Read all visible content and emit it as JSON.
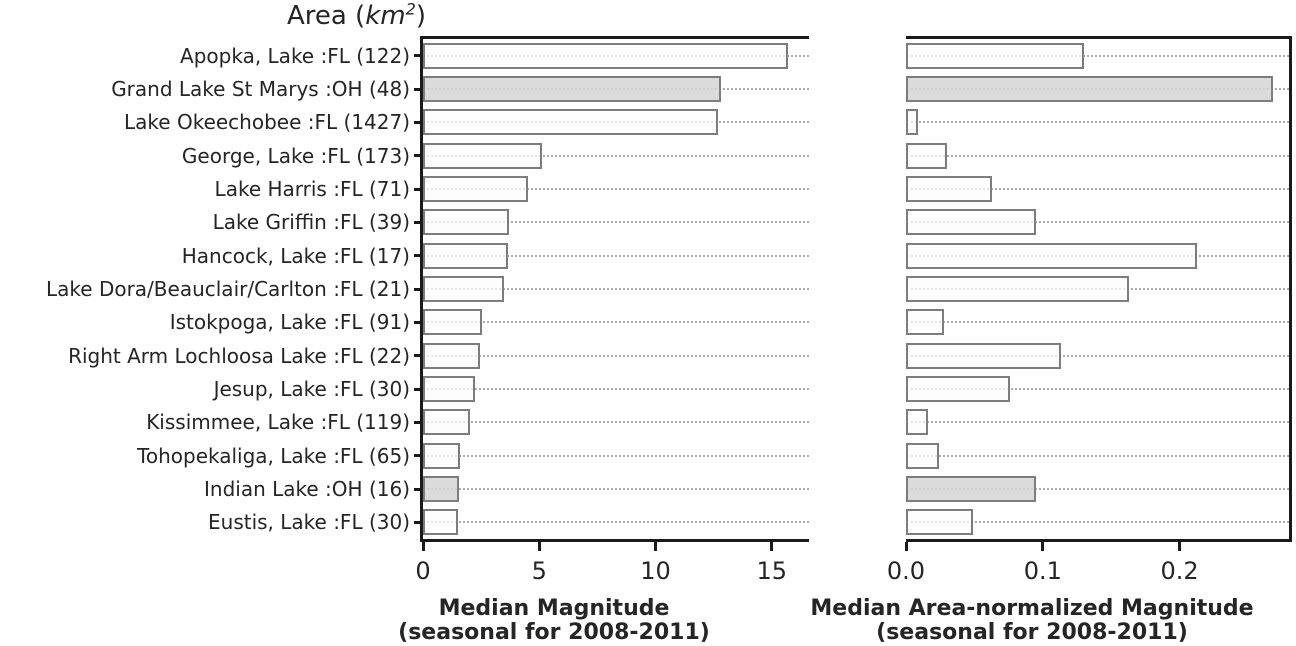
{
  "figure_title": {
    "prefix": "Area (",
    "unit_italic": "km",
    "superscript": "2",
    "suffix": ")"
  },
  "colors": {
    "spine": "#1a1a1a",
    "bar_edge": "#7d7d7d",
    "bar_fill": "#fcfcfc",
    "bar_fill_highlight": "#d6d6d6",
    "gridline": "#ababab",
    "text": "#252525",
    "background": "#ffffff"
  },
  "categories": [
    "Apopka, Lake :FL (122)",
    "Grand Lake St Marys :OH (48)",
    "Lake Okeechobee :FL (1427)",
    "George, Lake :FL (173)",
    "Lake Harris :FL (71)",
    "Lake Griffin :FL (39)",
    "Hancock, Lake :FL (17)",
    "Lake Dora/Beauclair/Carlton :FL (21)",
    "Istokpoga, Lake :FL (91)",
    "Right Arm Lochloosa Lake :FL (22)",
    "Jesup, Lake :FL (30)",
    "Kissimmee, Lake :FL (119)",
    "Tohopekaliga, Lake :FL (65)",
    "Indian Lake :OH (16)",
    "Eustis, Lake :FL (30)"
  ],
  "highlighted_categories": [
    "Grand Lake St Marys :OH (48)",
    "Indian Lake :OH (16)"
  ],
  "chart_data": [
    {
      "id": "left",
      "type": "bar",
      "orientation": "horizontal",
      "xlabel_lines": [
        "Median Magnitude",
        "(seasonal for 2008-2011)"
      ],
      "categories": [
        "Apopka, Lake :FL (122)",
        "Grand Lake St Marys :OH (48)",
        "Lake Okeechobee :FL (1427)",
        "George, Lake :FL (173)",
        "Lake Harris :FL (71)",
        "Lake Griffin :FL (39)",
        "Hancock, Lake :FL (17)",
        "Lake Dora/Beauclair/Carlton :FL (21)",
        "Istokpoga, Lake :FL (91)",
        "Right Arm Lochloosa Lake :FL (22)",
        "Jesup, Lake :FL (30)",
        "Kissimmee, Lake :FL (119)",
        "Tohopekaliga, Lake :FL (65)",
        "Indian Lake :OH (16)",
        "Eustis, Lake :FL (30)"
      ],
      "values": [
        15.7,
        12.8,
        12.7,
        5.1,
        4.5,
        3.7,
        3.65,
        3.5,
        2.55,
        2.45,
        2.25,
        2.0,
        1.6,
        1.55,
        1.5
      ],
      "highlight_indices": [
        1,
        13
      ],
      "xlim": [
        0,
        16.6
      ],
      "xticks": [
        0,
        5,
        10,
        15
      ],
      "xtick_labels": [
        "0",
        "5",
        "10",
        "15"
      ],
      "grid": "dotted horizontal, one line per category",
      "has_y_tick_marks": true
    },
    {
      "id": "right",
      "type": "bar",
      "orientation": "horizontal",
      "xlabel_lines": [
        "Median Area-normalized Magnitude",
        "(seasonal for 2008-2011)"
      ],
      "categories": [
        "Apopka, Lake :FL (122)",
        "Grand Lake St Marys :OH (48)",
        "Lake Okeechobee :FL (1427)",
        "George, Lake :FL (173)",
        "Lake Harris :FL (71)",
        "Lake Griffin :FL (39)",
        "Hancock, Lake :FL (17)",
        "Lake Dora/Beauclair/Carlton :FL (21)",
        "Istokpoga, Lake :FL (91)",
        "Right Arm Lochloosa Lake :FL (22)",
        "Jesup, Lake :FL (30)",
        "Kissimmee, Lake :FL (119)",
        "Tohopekaliga, Lake :FL (65)",
        "Indian Lake :OH (16)",
        "Eustis, Lake :FL (30)"
      ],
      "values": [
        0.13,
        0.268,
        0.009,
        0.03,
        0.063,
        0.095,
        0.213,
        0.163,
        0.028,
        0.113,
        0.076,
        0.016,
        0.024,
        0.095,
        0.049
      ],
      "highlight_indices": [
        1,
        13
      ],
      "xlim": [
        0,
        0.28
      ],
      "xticks": [
        0.0,
        0.1,
        0.2
      ],
      "xtick_labels": [
        "0.0",
        "0.1",
        "0.2"
      ],
      "grid": "dotted horizontal, one line per category",
      "has_y_tick_marks": false
    }
  ]
}
